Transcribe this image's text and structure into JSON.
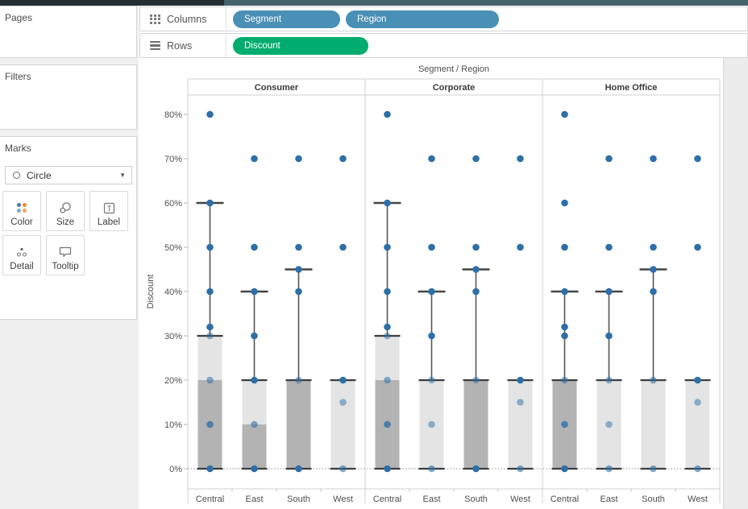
{
  "colors": {
    "pill_dimension": "#4a8fb5",
    "pill_measure": "#00ac6e",
    "dot": "#2e6fa7",
    "box_dark": "#b3b3b3",
    "box_light": "#e4e4e4",
    "box_edge": "#3d3d3d",
    "whisker": "#555555",
    "panel_border": "#d0d0d0",
    "zero_line": "#909090",
    "axis_text": "#4f4f4f",
    "header_text": "#3b3b3b"
  },
  "left_panel": {
    "pages_label": "Pages",
    "filters_label": "Filters",
    "marks": {
      "title": "Marks",
      "mark_type": "Circle",
      "buttons": [
        {
          "label": "Color"
        },
        {
          "label": "Size"
        },
        {
          "label": "Label"
        },
        {
          "label": "Detail"
        },
        {
          "label": "Tooltip"
        }
      ]
    }
  },
  "shelves": {
    "columns_label": "Columns",
    "rows_label": "Rows",
    "columns_pills": [
      {
        "label": "Segment"
      },
      {
        "label": "Region"
      }
    ],
    "rows_pills": [
      {
        "label": "Discount"
      }
    ]
  },
  "chart_data": {
    "type": "boxplot",
    "title": "Segment / Region",
    "ylabel": "Discount",
    "y_tick_percents": [
      0,
      10,
      20,
      30,
      40,
      50,
      60,
      70,
      80
    ],
    "ylim_percent": [
      0,
      85
    ],
    "categories": [
      "Central",
      "East",
      "South",
      "West"
    ],
    "panels": [
      {
        "label": "Consumer",
        "columns": [
          {
            "label": "Central",
            "box": {
              "q1": 0,
              "median": 20,
              "q3": 30,
              "whisker_high": 60,
              "whisker_low": 0
            },
            "points": [
              {
                "v": 80,
                "o": 1
              },
              {
                "v": 60,
                "o": 1
              },
              {
                "v": 50,
                "o": 1
              },
              {
                "v": 40,
                "o": 1
              },
              {
                "v": 32,
                "o": 1
              },
              {
                "v": 30,
                "o": 0.5
              },
              {
                "v": 20,
                "o": 0.55
              },
              {
                "v": 10,
                "o": 0.8
              },
              {
                "v": 0,
                "o": 1
              }
            ]
          },
          {
            "label": "East",
            "box": {
              "q1": 0,
              "median": 10,
              "q3": 20,
              "whisker_high": 40,
              "whisker_low": 0
            },
            "points": [
              {
                "v": 70,
                "o": 1
              },
              {
                "v": 50,
                "o": 1
              },
              {
                "v": 40,
                "o": 1
              },
              {
                "v": 30,
                "o": 1
              },
              {
                "v": 20,
                "o": 1
              },
              {
                "v": 10,
                "o": 0.6
              },
              {
                "v": 0,
                "o": 1
              }
            ]
          },
          {
            "label": "South",
            "box": {
              "q1": 0,
              "median": 20,
              "q3": 20,
              "whisker_high": 45,
              "whisker_low": 0
            },
            "points": [
              {
                "v": 70,
                "o": 1
              },
              {
                "v": 50,
                "o": 1
              },
              {
                "v": 45,
                "o": 1
              },
              {
                "v": 40,
                "o": 1
              },
              {
                "v": 20,
                "o": 0.5
              },
              {
                "v": 0,
                "o": 1
              }
            ]
          },
          {
            "label": "West",
            "box": {
              "q1": 0,
              "median": 0,
              "q3": 20,
              "whisker_high": 20,
              "whisker_low": 0
            },
            "points": [
              {
                "v": 70,
                "o": 1
              },
              {
                "v": 50,
                "o": 1
              },
              {
                "v": 20,
                "o": 1
              },
              {
                "v": 15,
                "o": 0.5
              },
              {
                "v": 0,
                "o": 0.6
              }
            ]
          }
        ]
      },
      {
        "label": "Corporate",
        "columns": [
          {
            "label": "Central",
            "box": {
              "q1": 0,
              "median": 20,
              "q3": 30,
              "whisker_high": 60,
              "whisker_low": 0
            },
            "points": [
              {
                "v": 80,
                "o": 1
              },
              {
                "v": 60,
                "o": 1
              },
              {
                "v": 50,
                "o": 1
              },
              {
                "v": 40,
                "o": 1
              },
              {
                "v": 32,
                "o": 1
              },
              {
                "v": 30,
                "o": 0.5
              },
              {
                "v": 20,
                "o": 0.55
              },
              {
                "v": 10,
                "o": 0.8
              },
              {
                "v": 0,
                "o": 1
              }
            ]
          },
          {
            "label": "East",
            "box": {
              "q1": 0,
              "median": 0,
              "q3": 20,
              "whisker_high": 40,
              "whisker_low": 0
            },
            "points": [
              {
                "v": 70,
                "o": 1
              },
              {
                "v": 50,
                "o": 1
              },
              {
                "v": 40,
                "o": 1
              },
              {
                "v": 30,
                "o": 1
              },
              {
                "v": 20,
                "o": 0.5
              },
              {
                "v": 10,
                "o": 0.5
              },
              {
                "v": 0,
                "o": 0.6
              }
            ]
          },
          {
            "label": "South",
            "box": {
              "q1": 0,
              "median": 20,
              "q3": 20,
              "whisker_high": 45,
              "whisker_low": 0
            },
            "points": [
              {
                "v": 70,
                "o": 1
              },
              {
                "v": 50,
                "o": 1
              },
              {
                "v": 45,
                "o": 1
              },
              {
                "v": 40,
                "o": 1
              },
              {
                "v": 20,
                "o": 0.5
              },
              {
                "v": 0,
                "o": 1
              }
            ]
          },
          {
            "label": "West",
            "box": {
              "q1": 0,
              "median": 0,
              "q3": 20,
              "whisker_high": 20,
              "whisker_low": 0
            },
            "points": [
              {
                "v": 70,
                "o": 1
              },
              {
                "v": 50,
                "o": 1
              },
              {
                "v": 20,
                "o": 1
              },
              {
                "v": 15,
                "o": 0.5
              },
              {
                "v": 0,
                "o": 0.6
              }
            ]
          }
        ]
      },
      {
        "label": "Home Office",
        "columns": [
          {
            "label": "Central",
            "box": {
              "q1": 0,
              "median": 20,
              "q3": 20,
              "whisker_high": 40,
              "whisker_low": 0
            },
            "points": [
              {
                "v": 80,
                "o": 1
              },
              {
                "v": 60,
                "o": 1
              },
              {
                "v": 50,
                "o": 1
              },
              {
                "v": 40,
                "o": 1
              },
              {
                "v": 32,
                "o": 1
              },
              {
                "v": 30,
                "o": 1
              },
              {
                "v": 20,
                "o": 0.55
              },
              {
                "v": 10,
                "o": 0.8
              },
              {
                "v": 0,
                "o": 1
              }
            ]
          },
          {
            "label": "East",
            "box": {
              "q1": 0,
              "median": 0,
              "q3": 20,
              "whisker_high": 40,
              "whisker_low": 0
            },
            "points": [
              {
                "v": 70,
                "o": 1
              },
              {
                "v": 50,
                "o": 1
              },
              {
                "v": 40,
                "o": 1
              },
              {
                "v": 30,
                "o": 1
              },
              {
                "v": 20,
                "o": 0.5
              },
              {
                "v": 10,
                "o": 0.5
              },
              {
                "v": 0,
                "o": 0.6
              }
            ]
          },
          {
            "label": "South",
            "box": {
              "q1": 0,
              "median": 0,
              "q3": 20,
              "whisker_high": 45,
              "whisker_low": 0
            },
            "points": [
              {
                "v": 70,
                "o": 1
              },
              {
                "v": 50,
                "o": 1
              },
              {
                "v": 45,
                "o": 1
              },
              {
                "v": 40,
                "o": 1
              },
              {
                "v": 20,
                "o": 0.6
              },
              {
                "v": 0,
                "o": 0.6
              }
            ]
          },
          {
            "label": "West",
            "box": {
              "q1": 0,
              "median": 0,
              "q3": 20,
              "whisker_high": 20,
              "whisker_low": 0
            },
            "points": [
              {
                "v": 70,
                "o": 1
              },
              {
                "v": 50,
                "o": 1
              },
              {
                "v": 20,
                "o": 1
              },
              {
                "v": 15,
                "o": 0.5
              },
              {
                "v": 0,
                "o": 0.6
              }
            ]
          }
        ]
      }
    ]
  }
}
